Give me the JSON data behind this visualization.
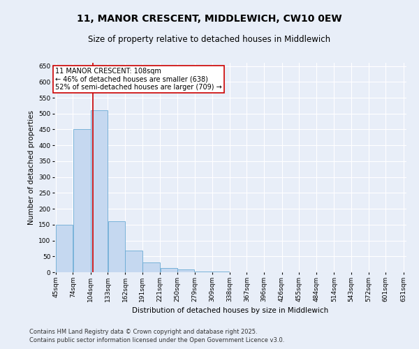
{
  "title": "11, MANOR CRESCENT, MIDDLEWICH, CW10 0EW",
  "subtitle": "Size of property relative to detached houses in Middlewich",
  "xlabel": "Distribution of detached houses by size in Middlewich",
  "ylabel": "Number of detached properties",
  "footer_line1": "Contains HM Land Registry data © Crown copyright and database right 2025.",
  "footer_line2": "Contains public sector information licensed under the Open Government Licence v3.0.",
  "bins": [
    45,
    74,
    104,
    133,
    162,
    191,
    221,
    250,
    279,
    309,
    338,
    367,
    396,
    426,
    455,
    484,
    514,
    543,
    572,
    601,
    631
  ],
  "bin_labels": [
    "45sqm",
    "74sqm",
    "104sqm",
    "133sqm",
    "162sqm",
    "191sqm",
    "221sqm",
    "250sqm",
    "279sqm",
    "309sqm",
    "338sqm",
    "367sqm",
    "396sqm",
    "426sqm",
    "455sqm",
    "484sqm",
    "514sqm",
    "543sqm",
    "572sqm",
    "601sqm",
    "631sqm"
  ],
  "counts": [
    150,
    450,
    510,
    160,
    68,
    30,
    13,
    8,
    2,
    2,
    1,
    1,
    1,
    1,
    1,
    1,
    1,
    1,
    1,
    1
  ],
  "bar_color": "#c5d8f0",
  "bar_edge_color": "#6aaad4",
  "property_size": 108,
  "red_line_color": "#cc0000",
  "annotation_line1": "11 MANOR CRESCENT: 108sqm",
  "annotation_line2": "← 46% of detached houses are smaller (638)",
  "annotation_line3": "52% of semi-detached houses are larger (709) →",
  "annotation_box_color": "#ffffff",
  "annotation_box_edge_color": "#cc0000",
  "ylim": [
    0,
    660
  ],
  "yticks": [
    0,
    50,
    100,
    150,
    200,
    250,
    300,
    350,
    400,
    450,
    500,
    550,
    600,
    650
  ],
  "bg_color": "#e8eef8",
  "grid_color": "#ffffff",
  "title_fontsize": 10,
  "subtitle_fontsize": 8.5,
  "axis_label_fontsize": 7.5,
  "tick_fontsize": 6.5,
  "annotation_fontsize": 7,
  "footer_fontsize": 6
}
